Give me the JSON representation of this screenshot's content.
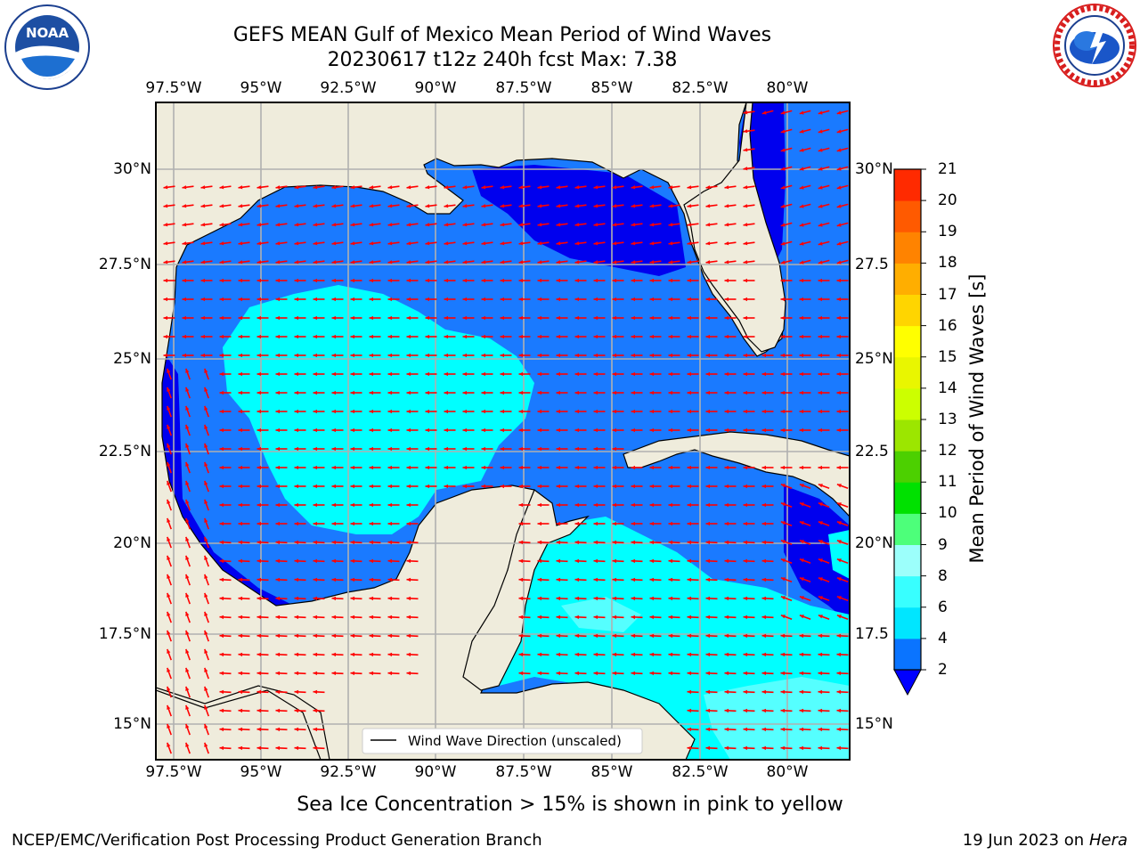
{
  "header": {
    "title_line1": "GEFS MEAN Gulf of Mexico Mean Period of Wind Waves",
    "title_line2": "20230617 t12z 240h fcst   Max: 7.38"
  },
  "logos": {
    "noaa": "NOAA",
    "noaa_ring": "NATIONAL OCEANIC AND ATMOSPHERIC ADMINISTRATION · U.S. DEPARTMENT OF COMMERCE",
    "nws_ring": "NATIONAL WEATHER SERVICE"
  },
  "axes": {
    "lon_labels": [
      "97.5°W",
      "95°W",
      "92.5°W",
      "90°W",
      "87.5°W",
      "85°W",
      "82.5°W",
      "80°W"
    ],
    "lat_labels_left": [
      "30°N",
      "27.5°N",
      "25°N",
      "22.5°N",
      "20°N",
      "17.5°N",
      "15°N"
    ],
    "lat_labels_right": [
      "30°N",
      "27.5",
      "25°N",
      "22.5",
      "20°N",
      "17.5",
      "15°N"
    ]
  },
  "legend": {
    "label": "Wind Wave Direction (unscaled)"
  },
  "colorbar": {
    "title": "Mean Period of Wind Waves [s]",
    "ticks": [
      "2",
      "4",
      "6",
      "8",
      "9",
      "10",
      "11",
      "12",
      "13",
      "14",
      "15",
      "16",
      "17",
      "18",
      "19",
      "20",
      "21"
    ],
    "colors": [
      "#0a74ff",
      "#00e6ff",
      "#38ffff",
      "#9cfffb",
      "#4dff7a",
      "#00e100",
      "#4cd000",
      "#9ce600",
      "#ccff00",
      "#e9f600",
      "#ffff00",
      "#ffd500",
      "#ffae00",
      "#ff8300",
      "#ff5a00",
      "#ff2a00"
    ],
    "under_color": "#0000ff"
  },
  "map_colors": {
    "land": "#efecdc",
    "ocean_low": "#0000ee",
    "ocean_mid": "#1a7aff",
    "ocean_cyan": "#00ffff",
    "ocean_pale": "#55ffff",
    "arrow": "#ff0000",
    "grid": "#b0b0b0"
  },
  "footer": {
    "caption": "Sea Ice Concentration > 15% is shown in pink to yellow",
    "left": "NCEP/EMC/Verification Post Processing Product Generation Branch",
    "date": "19 Jun 2023 on",
    "host": "Hera"
  }
}
